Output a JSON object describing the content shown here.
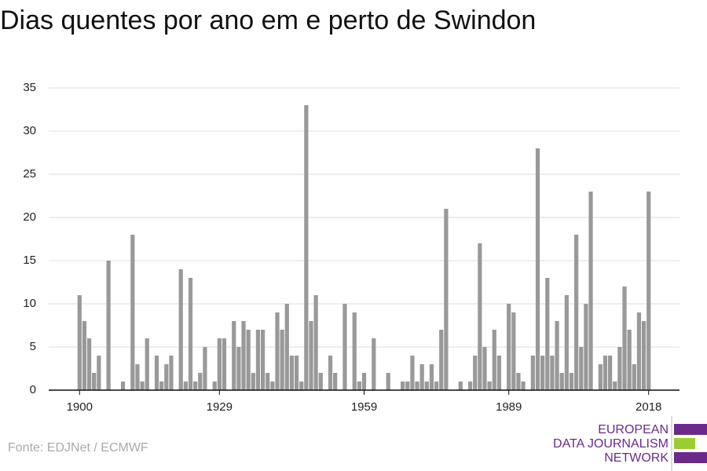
{
  "chart_data": {
    "type": "bar",
    "title": "Dias quentes por ano em e perto de Swindon",
    "source": "Fonte: EDJNet / ECMWF",
    "logo": [
      "EUROPEAN",
      "DATA JOURNALISM",
      "NETWORK"
    ],
    "x": [
      1900,
      1901,
      1902,
      1903,
      1904,
      1905,
      1906,
      1907,
      1908,
      1909,
      1910,
      1911,
      1912,
      1913,
      1914,
      1915,
      1916,
      1917,
      1918,
      1919,
      1920,
      1921,
      1922,
      1923,
      1924,
      1925,
      1926,
      1927,
      1928,
      1929,
      1930,
      1931,
      1932,
      1933,
      1934,
      1935,
      1936,
      1937,
      1938,
      1939,
      1940,
      1941,
      1942,
      1943,
      1944,
      1945,
      1946,
      1947,
      1948,
      1949,
      1950,
      1951,
      1952,
      1953,
      1954,
      1955,
      1956,
      1957,
      1958,
      1959,
      1960,
      1961,
      1962,
      1963,
      1964,
      1965,
      1966,
      1967,
      1968,
      1969,
      1970,
      1971,
      1972,
      1973,
      1974,
      1975,
      1976,
      1977,
      1978,
      1979,
      1980,
      1981,
      1982,
      1983,
      1984,
      1985,
      1986,
      1987,
      1988,
      1989,
      1990,
      1991,
      1992,
      1993,
      1994,
      1995,
      1996,
      1997,
      1998,
      1999,
      2000,
      2001,
      2002,
      2003,
      2004,
      2005,
      2006,
      2007,
      2008,
      2009,
      2010,
      2011,
      2012,
      2013,
      2014,
      2015,
      2016,
      2017,
      2018
    ],
    "values": [
      11,
      8,
      6,
      2,
      4,
      0,
      15,
      0,
      0,
      1,
      0,
      18,
      3,
      1,
      6,
      0,
      4,
      1,
      3,
      4,
      0,
      14,
      1,
      13,
      1,
      2,
      5,
      0,
      1,
      6,
      6,
      0,
      8,
      5,
      8,
      7,
      2,
      7,
      7,
      2,
      1,
      9,
      7,
      10,
      4,
      4,
      1,
      33,
      8,
      11,
      2,
      0,
      4,
      2,
      0,
      10,
      0,
      9,
      1,
      2,
      0,
      6,
      0,
      0,
      2,
      0,
      0,
      1,
      1,
      4,
      1,
      3,
      1,
      3,
      1,
      7,
      21,
      0,
      0,
      1,
      0,
      1,
      4,
      17,
      5,
      1,
      7,
      4,
      0,
      10,
      9,
      2,
      1,
      0,
      4,
      28,
      4,
      13,
      4,
      8,
      2,
      11,
      2,
      18,
      5,
      10,
      23,
      0,
      3,
      4,
      4,
      1,
      5,
      12,
      7,
      3,
      9,
      8,
      23
    ],
    "color": "#999999",
    "xlim": [
      1893.6,
      2024.4
    ],
    "xticks": [
      1900,
      1929,
      1959,
      1989,
      2018
    ],
    "ylim": [
      0,
      35
    ],
    "yticks": [
      0,
      5,
      10,
      15,
      20,
      25,
      30,
      35
    ],
    "grid": true
  }
}
